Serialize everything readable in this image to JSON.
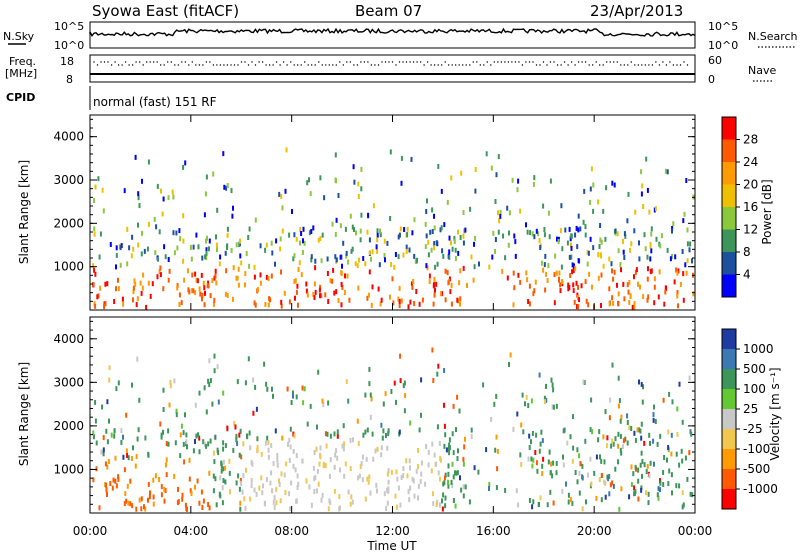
{
  "header": {
    "station": "Syowa East (fitACF)",
    "beam": "Beam 07",
    "date": "23/Apr/2013"
  },
  "sky_panel": {
    "left_label": "N.Sky",
    "right_label": "N.Search",
    "left_ticks": [
      "10^5",
      "10^0"
    ],
    "right_ticks": [
      "10^5",
      "10^0"
    ]
  },
  "freq_panel": {
    "left_label_1": "Freq.",
    "left_label_2": "[MHz]",
    "right_label": "Nave",
    "left_ticks": [
      "18",
      "8"
    ],
    "right_ticks": [
      "60",
      "0"
    ]
  },
  "cpid": {
    "label": "CPID",
    "value": "normal (fast) 151 RF"
  },
  "chart_data": [
    {
      "type": "heatmap",
      "name": "power",
      "ylabel": "Slant Range [km]",
      "yticks": [
        "4000",
        "3000",
        "2000",
        "1000"
      ],
      "xticks": [
        "00:00",
        "04:00",
        "08:00",
        "12:00",
        "16:00",
        "20:00",
        "00:00"
      ],
      "colorbar": {
        "label": "Power [dB]",
        "ticks": [
          "28",
          "24",
          "20",
          "16",
          "12",
          "8",
          "4"
        ],
        "colors": [
          "#ff0000",
          "#ff5a00",
          "#ff9a00",
          "#f0c000",
          "#8cc83c",
          "#3c965a",
          "#1e50a0",
          "#0000ff"
        ]
      }
    },
    {
      "type": "heatmap",
      "name": "velocity",
      "ylabel": "Slant Range [km]",
      "yticks": [
        "4000",
        "3000",
        "2000",
        "1000"
      ],
      "xticks": [
        "00:00",
        "04:00",
        "08:00",
        "12:00",
        "16:00",
        "20:00",
        "00:00"
      ],
      "colorbar": {
        "label": "Velocity [m s⁻¹]",
        "ticks": [
          "1000",
          "500",
          "100",
          "25",
          "-25",
          "-100",
          "-500",
          "-1000"
        ],
        "colors": [
          "#1e3ca0",
          "#3c78b4",
          "#3c965a",
          "#64c832",
          "#c8c8c8",
          "#f0c850",
          "#ff9a00",
          "#ff5a00",
          "#ff0000"
        ]
      }
    }
  ],
  "xlabel": "Time UT"
}
